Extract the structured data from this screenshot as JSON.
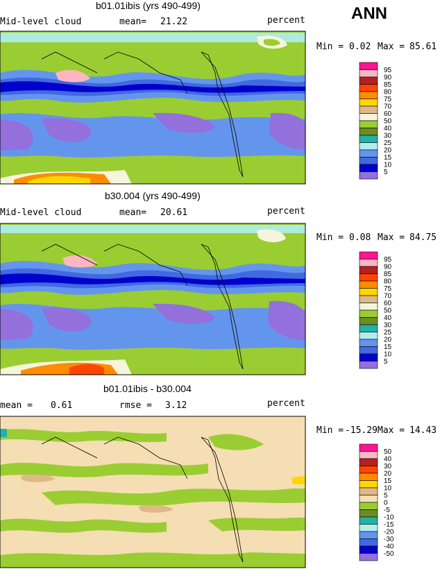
{
  "season": "ANN",
  "panels": [
    {
      "title": "b01.01ibis (yrs 490-499)",
      "left_label": "Mid-level cloud",
      "mean_label": "mean=",
      "mean_value": "21.22",
      "units": "percent",
      "min_label": "Min =",
      "min_value": "0.02",
      "max_label": "Max =",
      "max_value": "85.61",
      "colorbar": {
        "labels": [
          "95",
          "90",
          "85",
          "80",
          "75",
          "70",
          "60",
          "50",
          "40",
          "30",
          "25",
          "20",
          "15",
          "10",
          "5"
        ],
        "colors": [
          "#ff1493",
          "#ffb6c1",
          "#b22222",
          "#ff4500",
          "#ff8c00",
          "#ffd700",
          "#deb887",
          "#f5f5dc",
          "#9acd32",
          "#6b8e23",
          "#20b2aa",
          "#afeeee",
          "#6495ed",
          "#4169e1",
          "#0000cd",
          "#9370db"
        ]
      }
    },
    {
      "title": "b30.004 (yrs 490-499)",
      "left_label": "Mid-level cloud",
      "mean_label": "mean=",
      "mean_value": "20.61",
      "units": "percent",
      "min_label": "Min =",
      "min_value": "0.08",
      "max_label": "Max =",
      "max_value": "84.75",
      "colorbar": {
        "labels": [
          "95",
          "90",
          "85",
          "80",
          "75",
          "70",
          "60",
          "50",
          "40",
          "30",
          "25",
          "20",
          "15",
          "10",
          "5"
        ],
        "colors": [
          "#ff1493",
          "#ffb6c1",
          "#b22222",
          "#ff4500",
          "#ff8c00",
          "#ffd700",
          "#deb887",
          "#f5f5dc",
          "#9acd32",
          "#6b8e23",
          "#20b2aa",
          "#afeeee",
          "#6495ed",
          "#4169e1",
          "#0000cd",
          "#9370db"
        ]
      }
    },
    {
      "title": "b01.01ibis - b30.004",
      "left_label": "mean =",
      "left_value": "0.61",
      "rmse_label": "rmse =",
      "rmse_value": "3.12",
      "units": "percent",
      "min_label": "Min =",
      "min_value": "-15.29",
      "max_label": "Max =",
      "max_value": "14.43",
      "colorbar": {
        "labels": [
          "50",
          "40",
          "30",
          "20",
          "15",
          "10",
          "5",
          "0",
          "-5",
          "-10",
          "-15",
          "-20",
          "-30",
          "-40",
          "-50"
        ],
        "colors": [
          "#ff1493",
          "#ffb6c1",
          "#b22222",
          "#ff4500",
          "#ff8c00",
          "#ffd700",
          "#deb887",
          "#f5deb3",
          "#9acd32",
          "#6b8e23",
          "#20b2aa",
          "#afeeee",
          "#6495ed",
          "#4169e1",
          "#0000cd",
          "#9370db"
        ]
      }
    }
  ],
  "chart_data": {
    "type": "heatmap",
    "variable": "Mid-level cloud",
    "units": "percent",
    "season": "ANN",
    "maps": [
      {
        "title": "b01.01ibis (yrs 490-499)",
        "mean": 21.22,
        "min": 0.02,
        "max": 85.61
      },
      {
        "title": "b30.004 (yrs 490-499)",
        "mean": 20.61,
        "min": 0.08,
        "max": 84.75
      },
      {
        "title": "b01.01ibis - b30.004",
        "mean": 0.61,
        "rmse": 3.12,
        "min": -15.29,
        "max": 14.43
      }
    ]
  }
}
